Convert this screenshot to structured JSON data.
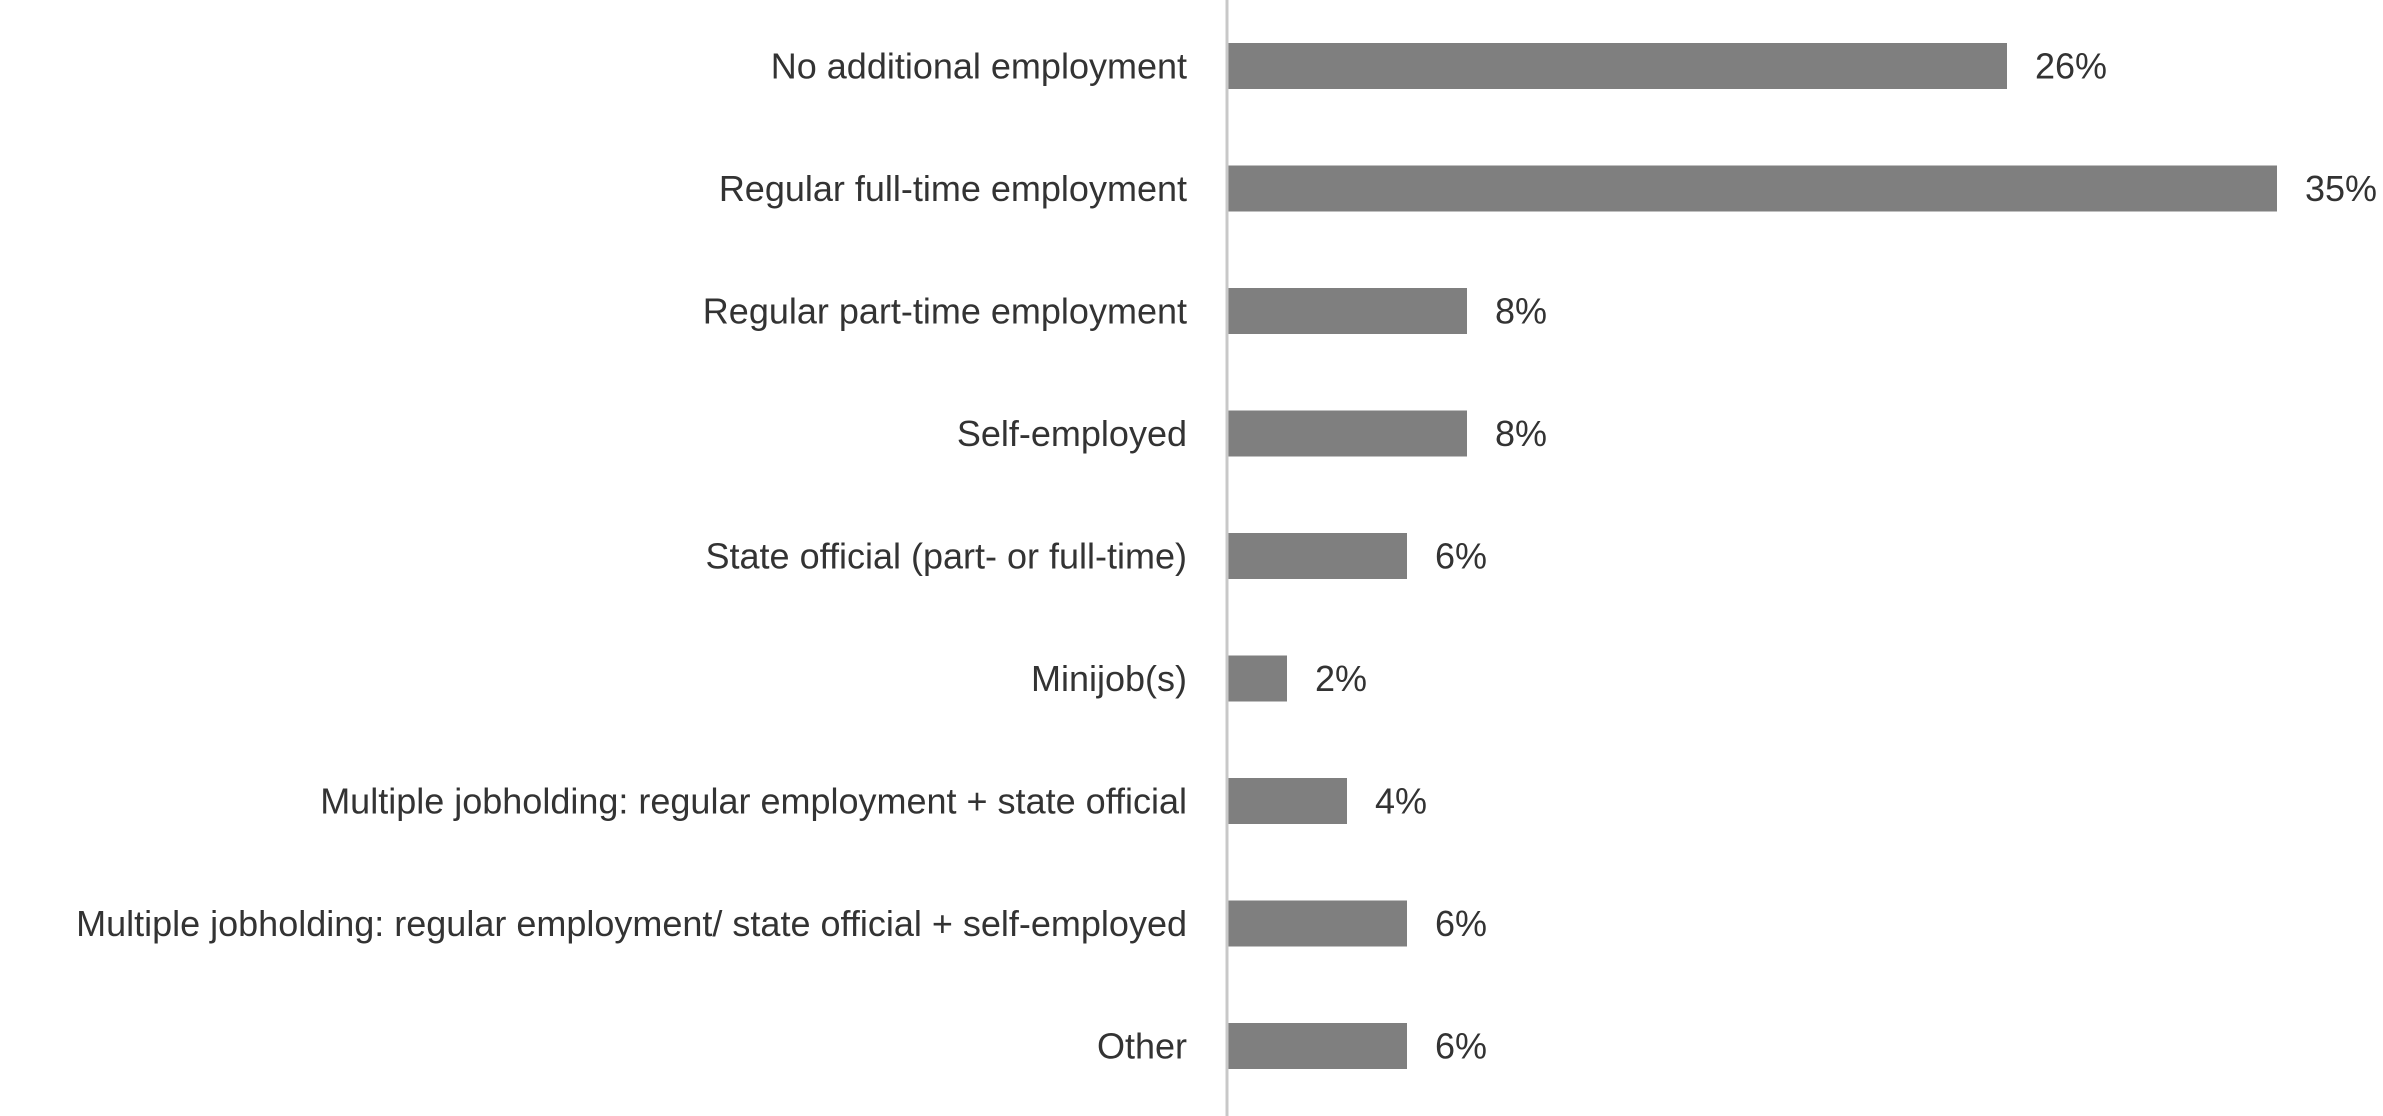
{
  "chart_data": {
    "type": "bar",
    "orientation": "horizontal",
    "categories": [
      "No additional employment",
      "Regular full-time employment",
      "Regular part-time employment",
      "Self-employed",
      "State official (part- or full-time)",
      "Minijob(s)",
      "Multiple jobholding: regular employment + state official",
      "Multiple jobholding: regular employment/ state official + self-employed",
      "Other"
    ],
    "values": [
      26,
      35,
      8,
      8,
      6,
      2,
      4,
      6,
      6
    ],
    "value_labels": [
      "26%",
      "35%",
      "8%",
      "8%",
      "6%",
      "2%",
      "4%",
      "6%",
      "6%"
    ],
    "unit": "%",
    "xlim": [
      0,
      35
    ],
    "grid": false,
    "legend": "none",
    "bar_color": "#7f7f7f",
    "axis_color": "#c8c8c8",
    "text_color": "#333333"
  }
}
